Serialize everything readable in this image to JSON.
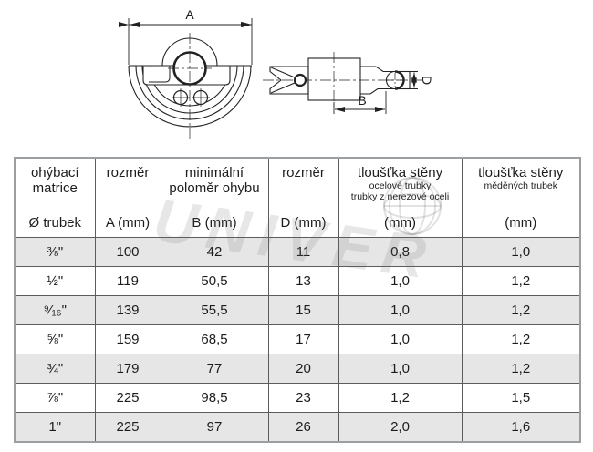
{
  "drawing": {
    "labels": {
      "dim_a": "A",
      "dim_b": "B",
      "dim_d": "D"
    }
  },
  "watermark": {
    "text": "UNIVER"
  },
  "table": {
    "columns": [
      {
        "line1": "ohýbací",
        "line2": "matrice",
        "unit": "Ø trubek"
      },
      {
        "line1": "rozměr",
        "unit": "A (mm)"
      },
      {
        "line1": "minimální",
        "line2": "poloměr ohybu",
        "unit": "B (mm)"
      },
      {
        "line1": "rozměr",
        "unit": "D (mm)"
      },
      {
        "line1": "tloušťka stěny",
        "sub1": "ocelové trubky",
        "sub2": "trubky z nerezové oceli",
        "unit": "(mm)"
      },
      {
        "line1": "tloušťka stěny",
        "sub1": "měděných trubek",
        "unit": "(mm)"
      }
    ],
    "rows": [
      [
        "⅜\"",
        "100",
        "42",
        "11",
        "0,8",
        "1,0"
      ],
      [
        "½\"",
        "119",
        "50,5",
        "13",
        "1,0",
        "1,2"
      ],
      [
        "⁹⁄₁₆\"",
        "139",
        "55,5",
        "15",
        "1,0",
        "1,2"
      ],
      [
        "⅝\"",
        "159",
        "68,5",
        "17",
        "1,0",
        "1,2"
      ],
      [
        "¾\"",
        "179",
        "77",
        "20",
        "1,0",
        "1,2"
      ],
      [
        "⅞\"",
        "225",
        "98,5",
        "23",
        "1,2",
        "1,5"
      ],
      [
        "1\"",
        "225",
        "97",
        "26",
        "2,0",
        "1,6"
      ]
    ]
  },
  "colors": {
    "row_shade": "#e6e6e6",
    "grid_line": "#5c5c5c",
    "outer_border": "#9b9fa2",
    "drawing_line": "#222222"
  }
}
